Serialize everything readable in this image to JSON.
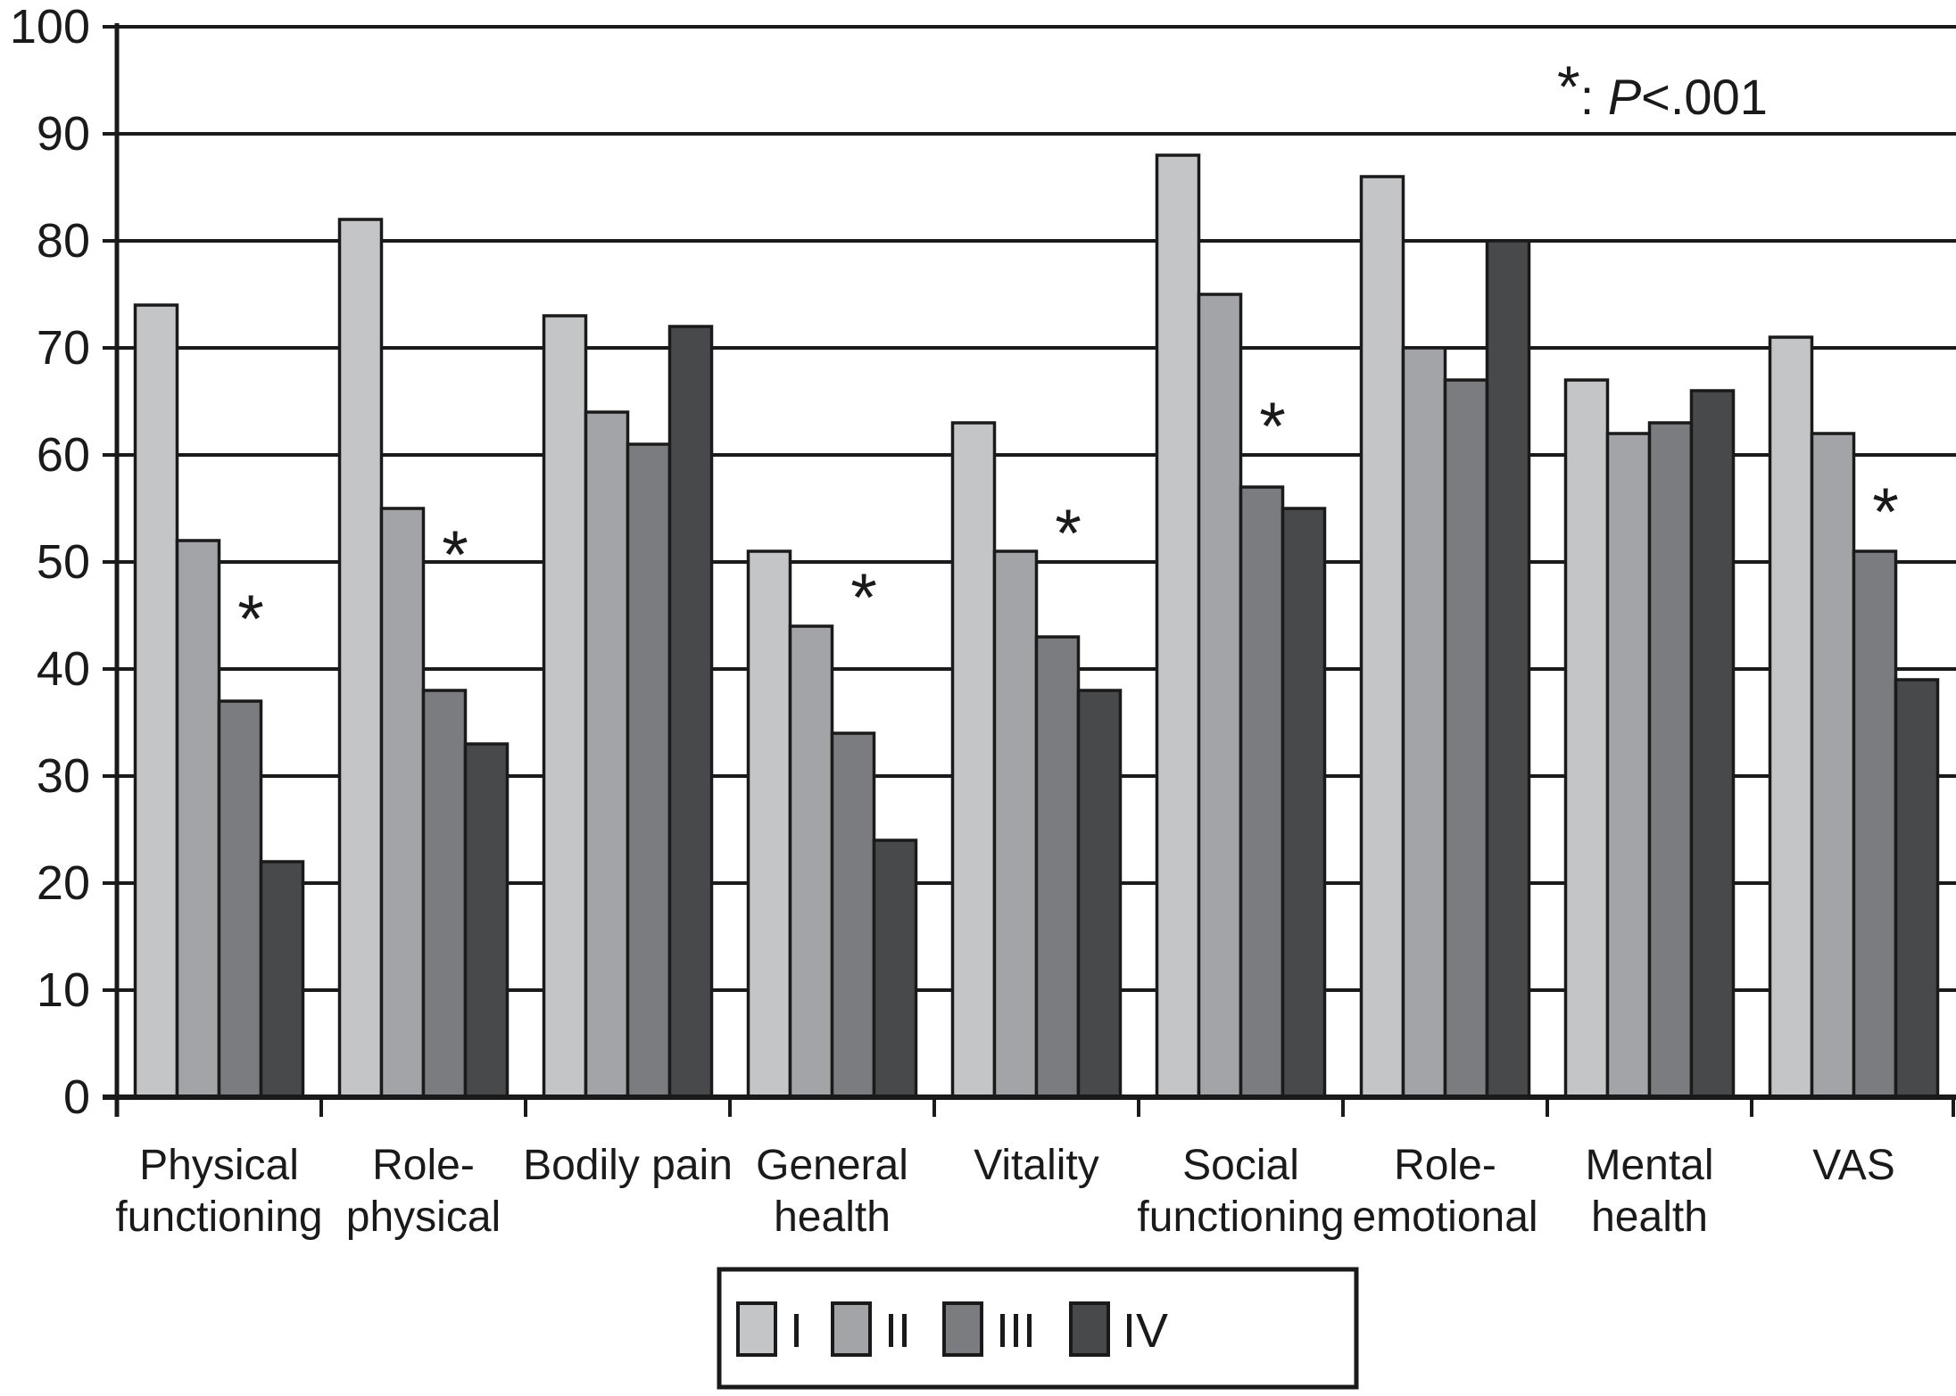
{
  "chart_data": {
    "type": "bar",
    "title": "",
    "categories": [
      "Physical functioning",
      "Role-physical",
      "Bodily pain",
      "General health",
      "Vitality",
      "Social functioning",
      "Role-emotional",
      "Mental health",
      "VAS"
    ],
    "category_label_lines": [
      [
        "Physical",
        "functioning"
      ],
      [
        "Role-",
        "physical"
      ],
      [
        "Bodily pain"
      ],
      [
        "General",
        "health"
      ],
      [
        "Vitality"
      ],
      [
        "Social",
        "functioning"
      ],
      [
        "Role-",
        "emotional"
      ],
      [
        "Mental",
        "health"
      ],
      [
        "VAS"
      ]
    ],
    "series": [
      {
        "name": "I",
        "color": "#c4c5c7",
        "values": [
          74,
          82,
          73,
          51,
          63,
          88,
          86,
          67,
          71
        ]
      },
      {
        "name": "II",
        "color": "#a3a4a7",
        "values": [
          52,
          55,
          64,
          44,
          51,
          75,
          70,
          62,
          62
        ]
      },
      {
        "name": "III",
        "color": "#7b7c7f",
        "values": [
          37,
          38,
          61,
          34,
          43,
          57,
          67,
          63,
          51
        ]
      },
      {
        "name": "IV",
        "color": "#48494b",
        "values": [
          22,
          33,
          72,
          24,
          38,
          55,
          80,
          66,
          39
        ]
      }
    ],
    "significance_marker": "*",
    "significance_values": [
      45,
      51,
      null,
      47,
      53,
      63,
      null,
      null,
      55
    ],
    "annotation": {
      "marker": "*",
      "separator": ": ",
      "p_label": "P",
      "p_value": "<.001"
    },
    "xlabel": "",
    "ylabel": "",
    "ylim": [
      0,
      100
    ],
    "ytick_step": 10,
    "ytick_labels": [
      "0",
      "10",
      "20",
      "30",
      "40",
      "50",
      "60",
      "70",
      "80",
      "90",
      "100"
    ],
    "grid": true,
    "legend_position": "bottom",
    "legend_entries": [
      "I",
      "II",
      "III",
      "IV"
    ],
    "axis_color": "#1a1a1a",
    "bar_border_color": "#1a1a1a",
    "background_color": "#ffffff"
  }
}
